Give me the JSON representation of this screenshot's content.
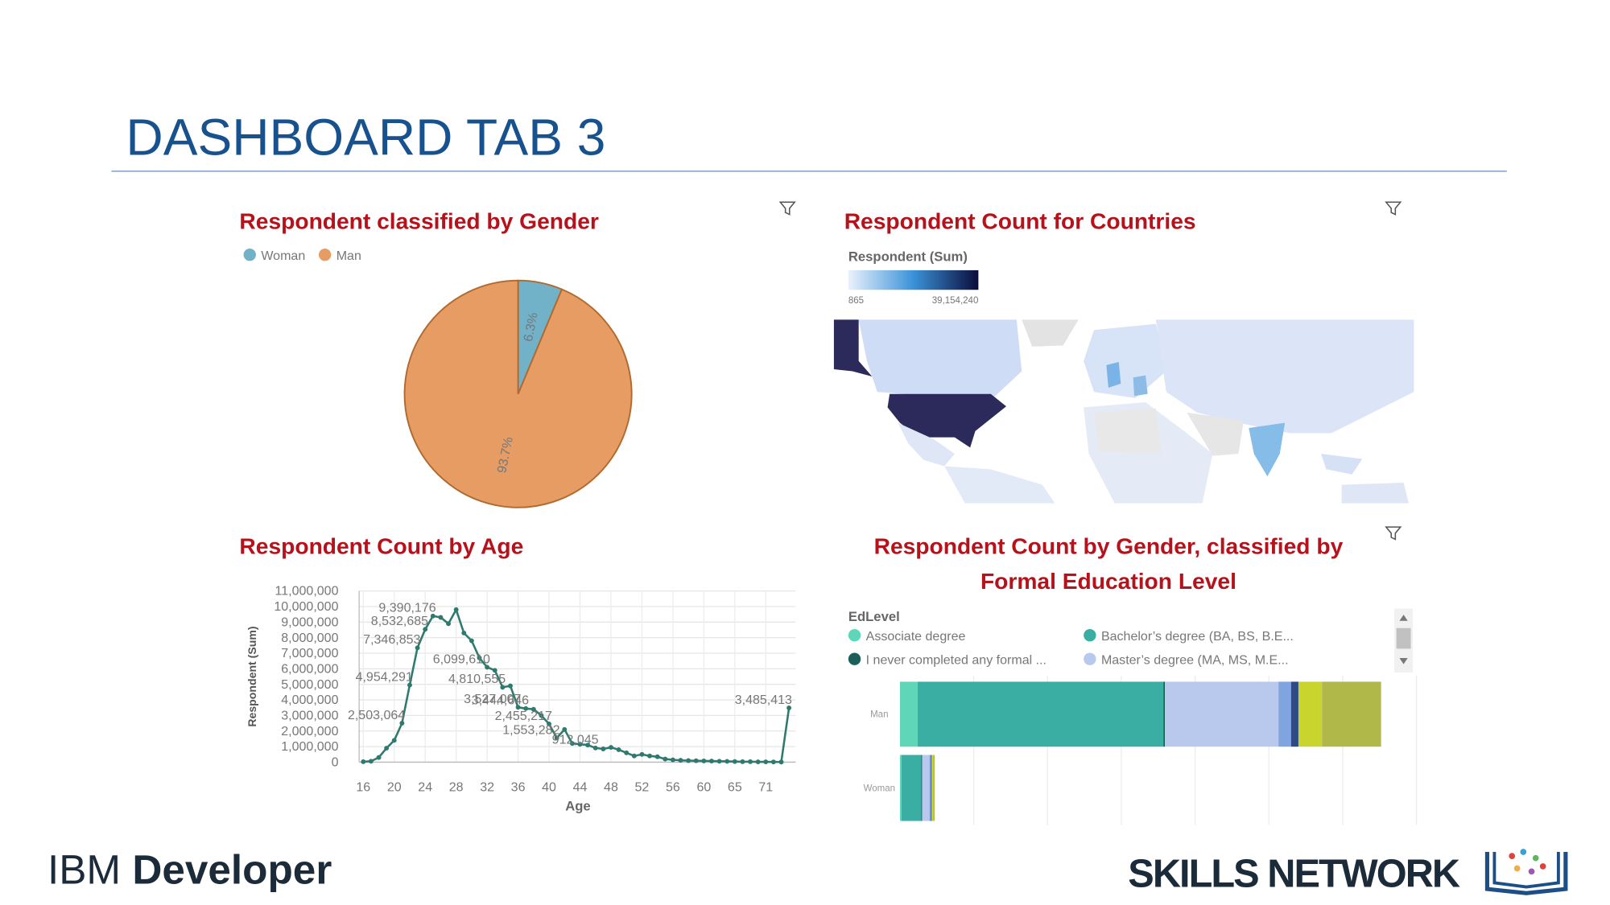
{
  "header": {
    "title": "DASHBOARD TAB 3"
  },
  "footer": {
    "left_prefix": "IBM",
    "left_name": "Developer",
    "right": "SKILLS NETWORK"
  },
  "chart_data": [
    {
      "type": "pie",
      "title": "Respondent classified by Gender",
      "categories": [
        "Woman",
        "Man"
      ],
      "values": [
        6.3,
        93.7
      ],
      "value_labels": [
        "6.3%",
        "93.7%"
      ],
      "colors": [
        "#72b2c9",
        "#e69c63"
      ]
    },
    {
      "type": "map",
      "title": "Respondent Count for Countries",
      "legend_title": "Respondent (Sum)",
      "color_min": {
        "value": 865,
        "label": "865"
      },
      "color_max": {
        "value": 39154240,
        "label": "39,154,240"
      },
      "colors": [
        "#eaf2fc",
        "#3b92d8",
        "#0a0c3a"
      ]
    },
    {
      "type": "line",
      "title": "Respondent Count by Age",
      "x_label": "Age",
      "y_label": "Respondent (Sum)",
      "color": "#2f7a6e",
      "categories": [
        16,
        null,
        null,
        null,
        20,
        null,
        null,
        null,
        24,
        null,
        null,
        null,
        28,
        null,
        null,
        null,
        32,
        null,
        null,
        null,
        36,
        null,
        null,
        null,
        40,
        null,
        null,
        null,
        44,
        null,
        null,
        null,
        48,
        null,
        null,
        null,
        52,
        null,
        null,
        null,
        56,
        null,
        null,
        null,
        60,
        null,
        null,
        null,
        65,
        null,
        null,
        null,
        71,
        null,
        null,
        null
      ],
      "values": [
        30000,
        60000,
        300000,
        900000,
        1400000,
        2503064,
        4954291,
        7346853,
        8532685,
        9390176,
        9300000,
        8900000,
        9800000,
        8300000,
        7800000,
        6700000,
        6099610,
        5900000,
        4810555,
        4900000,
        3527007,
        3444646,
        3400000,
        3000000,
        2455217,
        1553282,
        2100000,
        1200000,
        1150000,
        1100000,
        912045,
        850000,
        950000,
        800000,
        600000,
        400000,
        500000,
        400000,
        350000,
        200000,
        150000,
        120000,
        100000,
        90000,
        80000,
        70000,
        60000,
        50000,
        40000,
        30000,
        30000,
        20000,
        20000,
        15000,
        10000,
        3485413
      ],
      "value_labels": [
        null,
        null,
        null,
        null,
        null,
        "2,503,064",
        "4,954,291",
        "7,346,853",
        "8,532,685",
        "9,390,176",
        null,
        null,
        null,
        null,
        null,
        null,
        "6,099,610",
        null,
        "4,810,555",
        null,
        "3,527,007",
        "3,444,646",
        null,
        null,
        "2,455,217",
        "1,553,282",
        null,
        null,
        null,
        null,
        "912,045",
        null,
        null,
        null,
        null,
        null,
        null,
        null,
        null,
        null,
        null,
        null,
        null,
        null,
        null,
        null,
        null,
        null,
        null,
        null,
        null,
        null,
        null,
        null,
        null,
        "3,485,413"
      ],
      "ylim": [
        0,
        11000000
      ],
      "yticks": [
        0,
        {
          "value": 1000000,
          "label": "1,000,000"
        },
        {
          "value": 2000000,
          "label": "2,000,000"
        },
        {
          "value": 3000000,
          "label": "3,000,000"
        },
        {
          "value": 4000000,
          "label": "4,000,000"
        },
        {
          "value": 5000000,
          "label": "5,000,000"
        },
        {
          "value": 6000000,
          "label": "6,000,000"
        },
        {
          "value": 7000000,
          "label": "7,000,000"
        },
        {
          "value": 8000000,
          "label": "8,000,000"
        },
        {
          "value": 9000000,
          "label": "9,000,000"
        },
        {
          "value": 10000000,
          "label": "10,000,000"
        },
        {
          "value": 11000000,
          "label": "11,000,000"
        }
      ],
      "grid": true
    },
    {
      "type": "hbar-stacked",
      "title": [
        "Respondent Count by Gender, classified by",
        "Formal Education Level"
      ],
      "legend_title": "EdLevel",
      "categories": [
        "Man",
        "Woman"
      ],
      "xlim": [
        0,
        7
      ],
      "xticks": [
        1,
        2,
        3,
        4,
        5,
        6,
        7
      ],
      "grid": true,
      "series": [
        {
          "name": "Associate degree",
          "color": "#5fd6b8",
          "values": [
            0.24,
            0.02
          ]
        },
        {
          "name": "Bachelor’s degree (BA, BS, B.E...",
          "color": "#3aaea3",
          "values": [
            3.33,
            0.27
          ]
        },
        {
          "name": "I never completed any formal ...",
          "color": "#1a5f5a",
          "values": [
            0.02,
            0.01
          ]
        },
        {
          "name": "Master’s degree (MA, MS, M.E...",
          "color": "#b9c9ee",
          "values": [
            1.54,
            0.1
          ]
        },
        {
          "color": "#7fa4e0",
          "values": [
            0.17,
            0.02
          ]
        },
        {
          "color": "#2d4b86",
          "values": [
            0.1,
            0.01
          ]
        },
        {
          "color": "#c9d42e",
          "values": [
            0.32,
            0.02
          ]
        },
        {
          "color": "#b0b84a",
          "values": [
            0.8,
            0.02
          ]
        }
      ]
    }
  ]
}
